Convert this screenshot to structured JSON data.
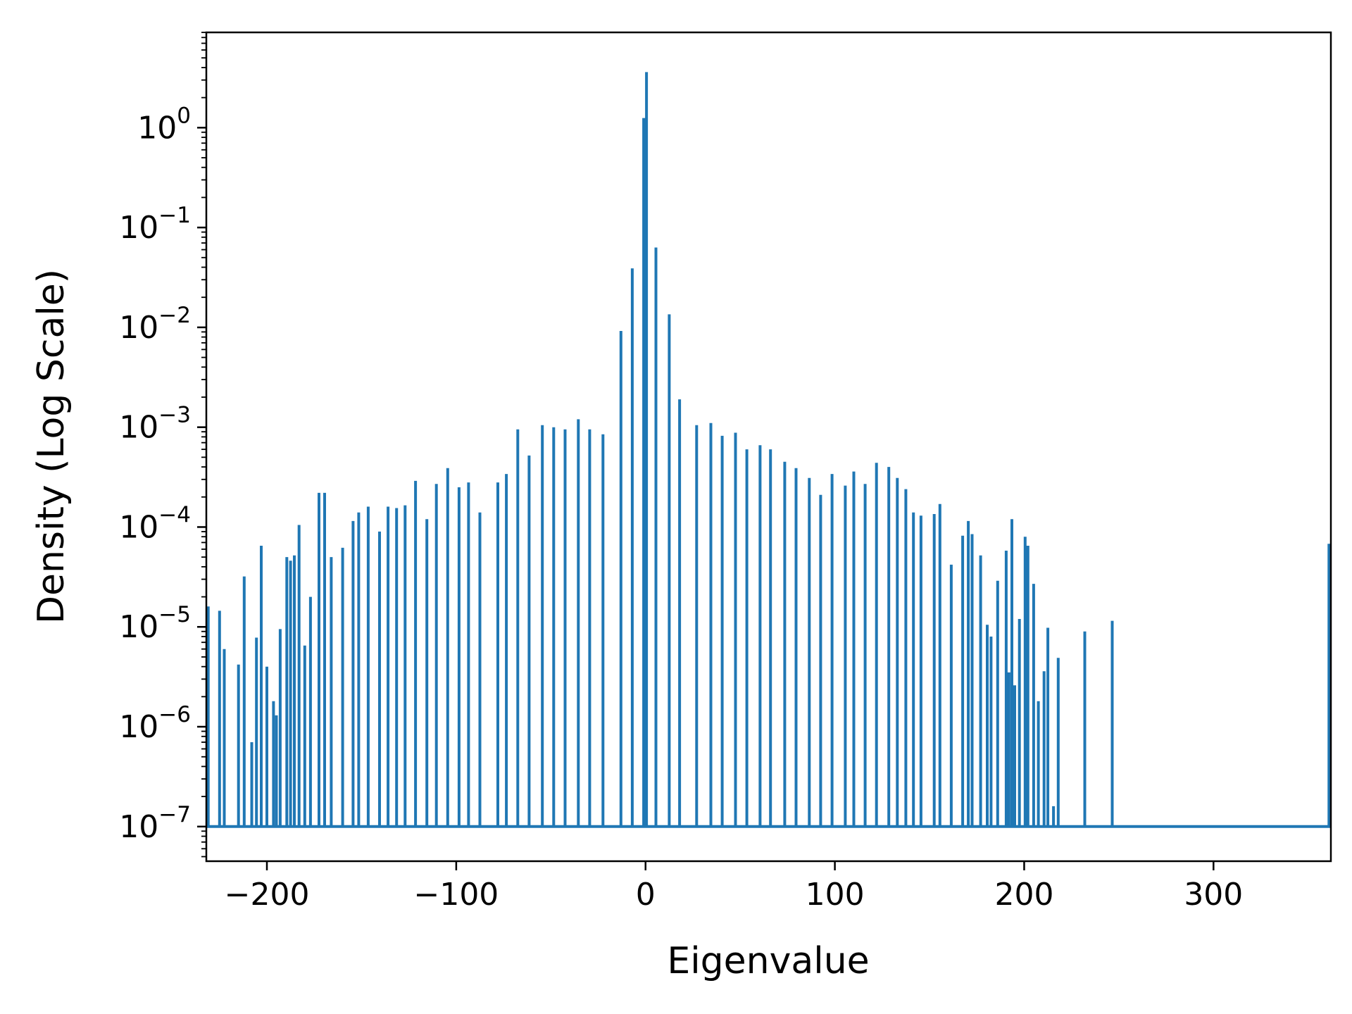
{
  "chart_data": {
    "type": "line",
    "title": "",
    "xlabel": "Eigenvalue",
    "ylabel": "Density (Log Scale)",
    "xlim": [
      -232,
      362
    ],
    "ylim": [
      4.5e-08,
      9.0
    ],
    "yscale": "log",
    "grid": false,
    "line_color": "#1f77b4",
    "baseline": 1e-07,
    "x_ticks": [
      {
        "value": -200,
        "label": "−200"
      },
      {
        "value": -100,
        "label": "−100"
      },
      {
        "value": 0,
        "label": "0"
      },
      {
        "value": 100,
        "label": "100"
      },
      {
        "value": 200,
        "label": "200"
      },
      {
        "value": 300,
        "label": "300"
      }
    ],
    "y_ticks": [
      {
        "value": 1,
        "base": "10",
        "exp": "0"
      },
      {
        "value": 0.1,
        "base": "10",
        "exp": "−1"
      },
      {
        "value": 0.01,
        "base": "10",
        "exp": "−2"
      },
      {
        "value": 0.001,
        "base": "10",
        "exp": "−3"
      },
      {
        "value": 0.0001,
        "base": "10",
        "exp": "−4"
      },
      {
        "value": 1e-05,
        "base": "10",
        "exp": "−5"
      },
      {
        "value": 1e-06,
        "base": "10",
        "exp": "−6"
      },
      {
        "value": 1e-07,
        "base": "10",
        "exp": "−7"
      }
    ],
    "spikes": [
      {
        "x": -231.0,
        "y": 1.6e-05
      },
      {
        "x": -225.0,
        "y": 1.45e-05
      },
      {
        "x": -222.5,
        "y": 6e-06
      },
      {
        "x": -215.0,
        "y": 4.2e-06
      },
      {
        "x": -212.0,
        "y": 3.2e-05
      },
      {
        "x": -208.0,
        "y": 7e-07
      },
      {
        "x": -205.5,
        "y": 7.8e-06
      },
      {
        "x": -203.0,
        "y": 6.5e-05
      },
      {
        "x": -200.0,
        "y": 4e-06
      },
      {
        "x": -196.5,
        "y": 1.8e-06
      },
      {
        "x": -195.0,
        "y": 1.3e-06
      },
      {
        "x": -193.0,
        "y": 9.5e-06
      },
      {
        "x": -189.5,
        "y": 5e-05
      },
      {
        "x": -187.5,
        "y": 4.6e-05
      },
      {
        "x": -185.5,
        "y": 5.2e-05
      },
      {
        "x": -183.0,
        "y": 0.000105
      },
      {
        "x": -180.0,
        "y": 6.5e-06
      },
      {
        "x": -177.0,
        "y": 2e-05
      },
      {
        "x": -172.5,
        "y": 0.00022
      },
      {
        "x": -169.5,
        "y": 0.00022
      },
      {
        "x": -166.0,
        "y": 5e-05
      },
      {
        "x": -160.0,
        "y": 6.2e-05
      },
      {
        "x": -154.5,
        "y": 0.000115
      },
      {
        "x": -151.5,
        "y": 0.00014
      },
      {
        "x": -146.5,
        "y": 0.00016
      },
      {
        "x": -140.5,
        "y": 9e-05
      },
      {
        "x": -136.0,
        "y": 0.00016
      },
      {
        "x": -131.5,
        "y": 0.000155
      },
      {
        "x": -127.0,
        "y": 0.000165
      },
      {
        "x": -121.5,
        "y": 0.00029
      },
      {
        "x": -115.5,
        "y": 0.00012
      },
      {
        "x": -110.5,
        "y": 0.00027
      },
      {
        "x": -104.5,
        "y": 0.00039
      },
      {
        "x": -98.5,
        "y": 0.00025
      },
      {
        "x": -93.5,
        "y": 0.00028
      },
      {
        "x": -87.5,
        "y": 0.00014
      },
      {
        "x": -78.0,
        "y": 0.00028
      },
      {
        "x": -73.5,
        "y": 0.00034
      },
      {
        "x": -67.5,
        "y": 0.00095
      },
      {
        "x": -61.5,
        "y": 0.00052
      },
      {
        "x": -54.5,
        "y": 0.00105
      },
      {
        "x": -48.5,
        "y": 0.001
      },
      {
        "x": -42.5,
        "y": 0.00095
      },
      {
        "x": -35.5,
        "y": 0.0012
      },
      {
        "x": -29.5,
        "y": 0.00095
      },
      {
        "x": -22.5,
        "y": 0.00085
      },
      {
        "x": -13.0,
        "y": 0.0092
      },
      {
        "x": -7.0,
        "y": 0.039
      },
      {
        "x": -1.0,
        "y": 1.25
      },
      {
        "x": 0.5,
        "y": 3.6
      },
      {
        "x": 5.5,
        "y": 0.063
      },
      {
        "x": 12.5,
        "y": 0.0135
      },
      {
        "x": 18.0,
        "y": 0.0019
      },
      {
        "x": 27.0,
        "y": 0.00105
      },
      {
        "x": 34.5,
        "y": 0.0011
      },
      {
        "x": 40.5,
        "y": 0.00082
      },
      {
        "x": 47.5,
        "y": 0.00088
      },
      {
        "x": 53.5,
        "y": 0.0006
      },
      {
        "x": 60.5,
        "y": 0.00066
      },
      {
        "x": 66.0,
        "y": 0.0006
      },
      {
        "x": 73.5,
        "y": 0.00045
      },
      {
        "x": 79.5,
        "y": 0.00039
      },
      {
        "x": 86.5,
        "y": 0.00031
      },
      {
        "x": 92.5,
        "y": 0.00021
      },
      {
        "x": 98.5,
        "y": 0.00034
      },
      {
        "x": 105.5,
        "y": 0.00026
      },
      {
        "x": 110.0,
        "y": 0.00036
      },
      {
        "x": 116.0,
        "y": 0.00027
      },
      {
        "x": 122.0,
        "y": 0.00044
      },
      {
        "x": 128.5,
        "y": 0.0004
      },
      {
        "x": 133.0,
        "y": 0.00031
      },
      {
        "x": 137.5,
        "y": 0.00024
      },
      {
        "x": 141.5,
        "y": 0.00014
      },
      {
        "x": 145.5,
        "y": 0.00013
      },
      {
        "x": 152.5,
        "y": 0.000135
      },
      {
        "x": 155.5,
        "y": 0.00017
      },
      {
        "x": 161.5,
        "y": 4.2e-05
      },
      {
        "x": 167.5,
        "y": 8.2e-05
      },
      {
        "x": 170.5,
        "y": 0.000115
      },
      {
        "x": 172.5,
        "y": 8.5e-05
      },
      {
        "x": 177.0,
        "y": 5.2e-05
      },
      {
        "x": 180.5,
        "y": 1.05e-05
      },
      {
        "x": 182.5,
        "y": 8e-06
      },
      {
        "x": 186.0,
        "y": 2.9e-05
      },
      {
        "x": 190.5,
        "y": 5.8e-05
      },
      {
        "x": 192.0,
        "y": 3.5e-06
      },
      {
        "x": 193.5,
        "y": 0.00012
      },
      {
        "x": 195.0,
        "y": 2.6e-06
      },
      {
        "x": 197.5,
        "y": 1.2e-05
      },
      {
        "x": 200.5,
        "y": 8e-05
      },
      {
        "x": 202.0,
        "y": 6.5e-05
      },
      {
        "x": 205.0,
        "y": 2.7e-05
      },
      {
        "x": 207.5,
        "y": 1.8e-06
      },
      {
        "x": 210.5,
        "y": 3.6e-06
      },
      {
        "x": 212.5,
        "y": 9.8e-06
      },
      {
        "x": 215.5,
        "y": 1.6e-07
      },
      {
        "x": 218.0,
        "y": 4.9e-06
      },
      {
        "x": 232.0,
        "y": 9e-06
      },
      {
        "x": 246.5,
        "y": 1.15e-05
      },
      {
        "x": 361.0,
        "y": 6.8e-05
      }
    ]
  }
}
